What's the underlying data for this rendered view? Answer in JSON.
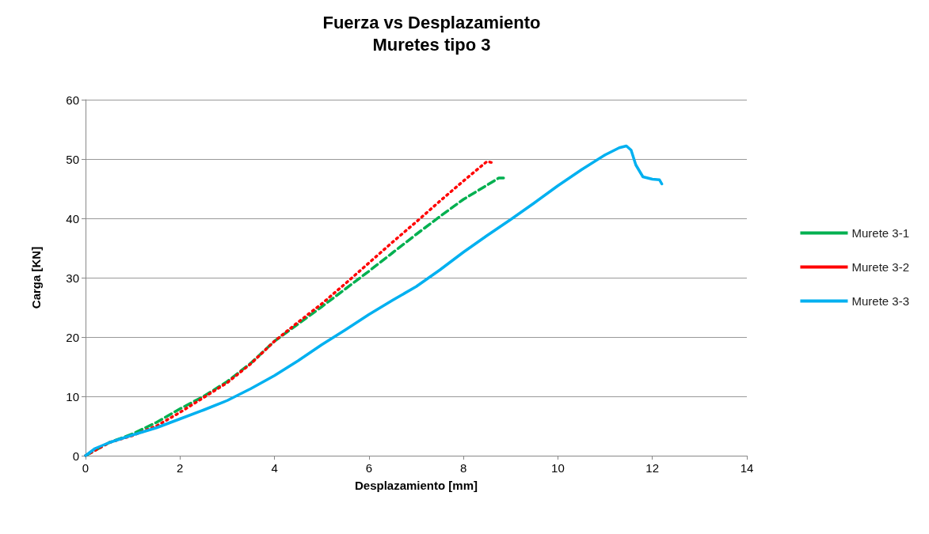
{
  "chart_data": {
    "type": "line",
    "title": "Fuerza vs Desplazamiento",
    "subtitle": "Muretes tipo 3",
    "xlabel": "Desplazamiento [mm]",
    "ylabel": "Carga [KN]",
    "xlim": [
      0,
      14
    ],
    "xticks": [
      0,
      2,
      4,
      6,
      8,
      10,
      12,
      14
    ],
    "ylim": [
      0,
      60
    ],
    "yticks": [
      0,
      10,
      20,
      30,
      40,
      50,
      60
    ],
    "grid": "y",
    "legend": "right",
    "marker": "none",
    "series": [
      {
        "name": "Murete 3-1",
        "color": "#00b050",
        "line_style": "dashed",
        "x": [
          0,
          0.5,
          1,
          1.5,
          2,
          2.5,
          3,
          3.5,
          4,
          4.5,
          5,
          5.5,
          6,
          6.5,
          7,
          7.5,
          8,
          8.5,
          8.75,
          8.85
        ],
        "values": [
          0,
          2.2,
          3.7,
          5.6,
          7.9,
          10,
          12.5,
          15.6,
          19.3,
          22.2,
          25.1,
          28.1,
          31.1,
          34.2,
          37.3,
          40.3,
          43.2,
          45.6,
          46.8,
          46.8
        ]
      },
      {
        "name": "Murete 3-2",
        "color": "#ff0000",
        "line_style": "dotted",
        "x": [
          0,
          0.5,
          1,
          1.5,
          2,
          2.5,
          3,
          3.5,
          4,
          4.5,
          5,
          5.5,
          6,
          6.5,
          7,
          7.5,
          8,
          8.5,
          8.6
        ],
        "values": [
          0,
          2.2,
          3.4,
          5,
          7.3,
          9.8,
          12.3,
          15.5,
          19.3,
          22.5,
          25.6,
          29,
          32.5,
          36,
          39.4,
          42.9,
          46.3,
          49.6,
          49.4
        ]
      },
      {
        "name": "Murete 3-3",
        "color": "#00b0f0",
        "line_style": "solid",
        "x": [
          0,
          0.2,
          0.5,
          1,
          1.5,
          2,
          2.5,
          3,
          3.5,
          4,
          4.5,
          5,
          5.5,
          6,
          6.5,
          7,
          7.5,
          8,
          8.5,
          9,
          9.5,
          10,
          10.5,
          11,
          11.3,
          11.45,
          11.55,
          11.65,
          11.8,
          12,
          12.15,
          12.2
        ],
        "values": [
          0,
          1.2,
          2.2,
          3.5,
          4.7,
          6.2,
          7.7,
          9.3,
          11.3,
          13.5,
          16,
          18.7,
          21.2,
          23.8,
          26.2,
          28.5,
          31.3,
          34.3,
          37.1,
          39.8,
          42.6,
          45.5,
          48.2,
          50.7,
          51.9,
          52.2,
          51.5,
          49,
          47,
          46.6,
          46.5,
          45.8
        ]
      }
    ]
  }
}
